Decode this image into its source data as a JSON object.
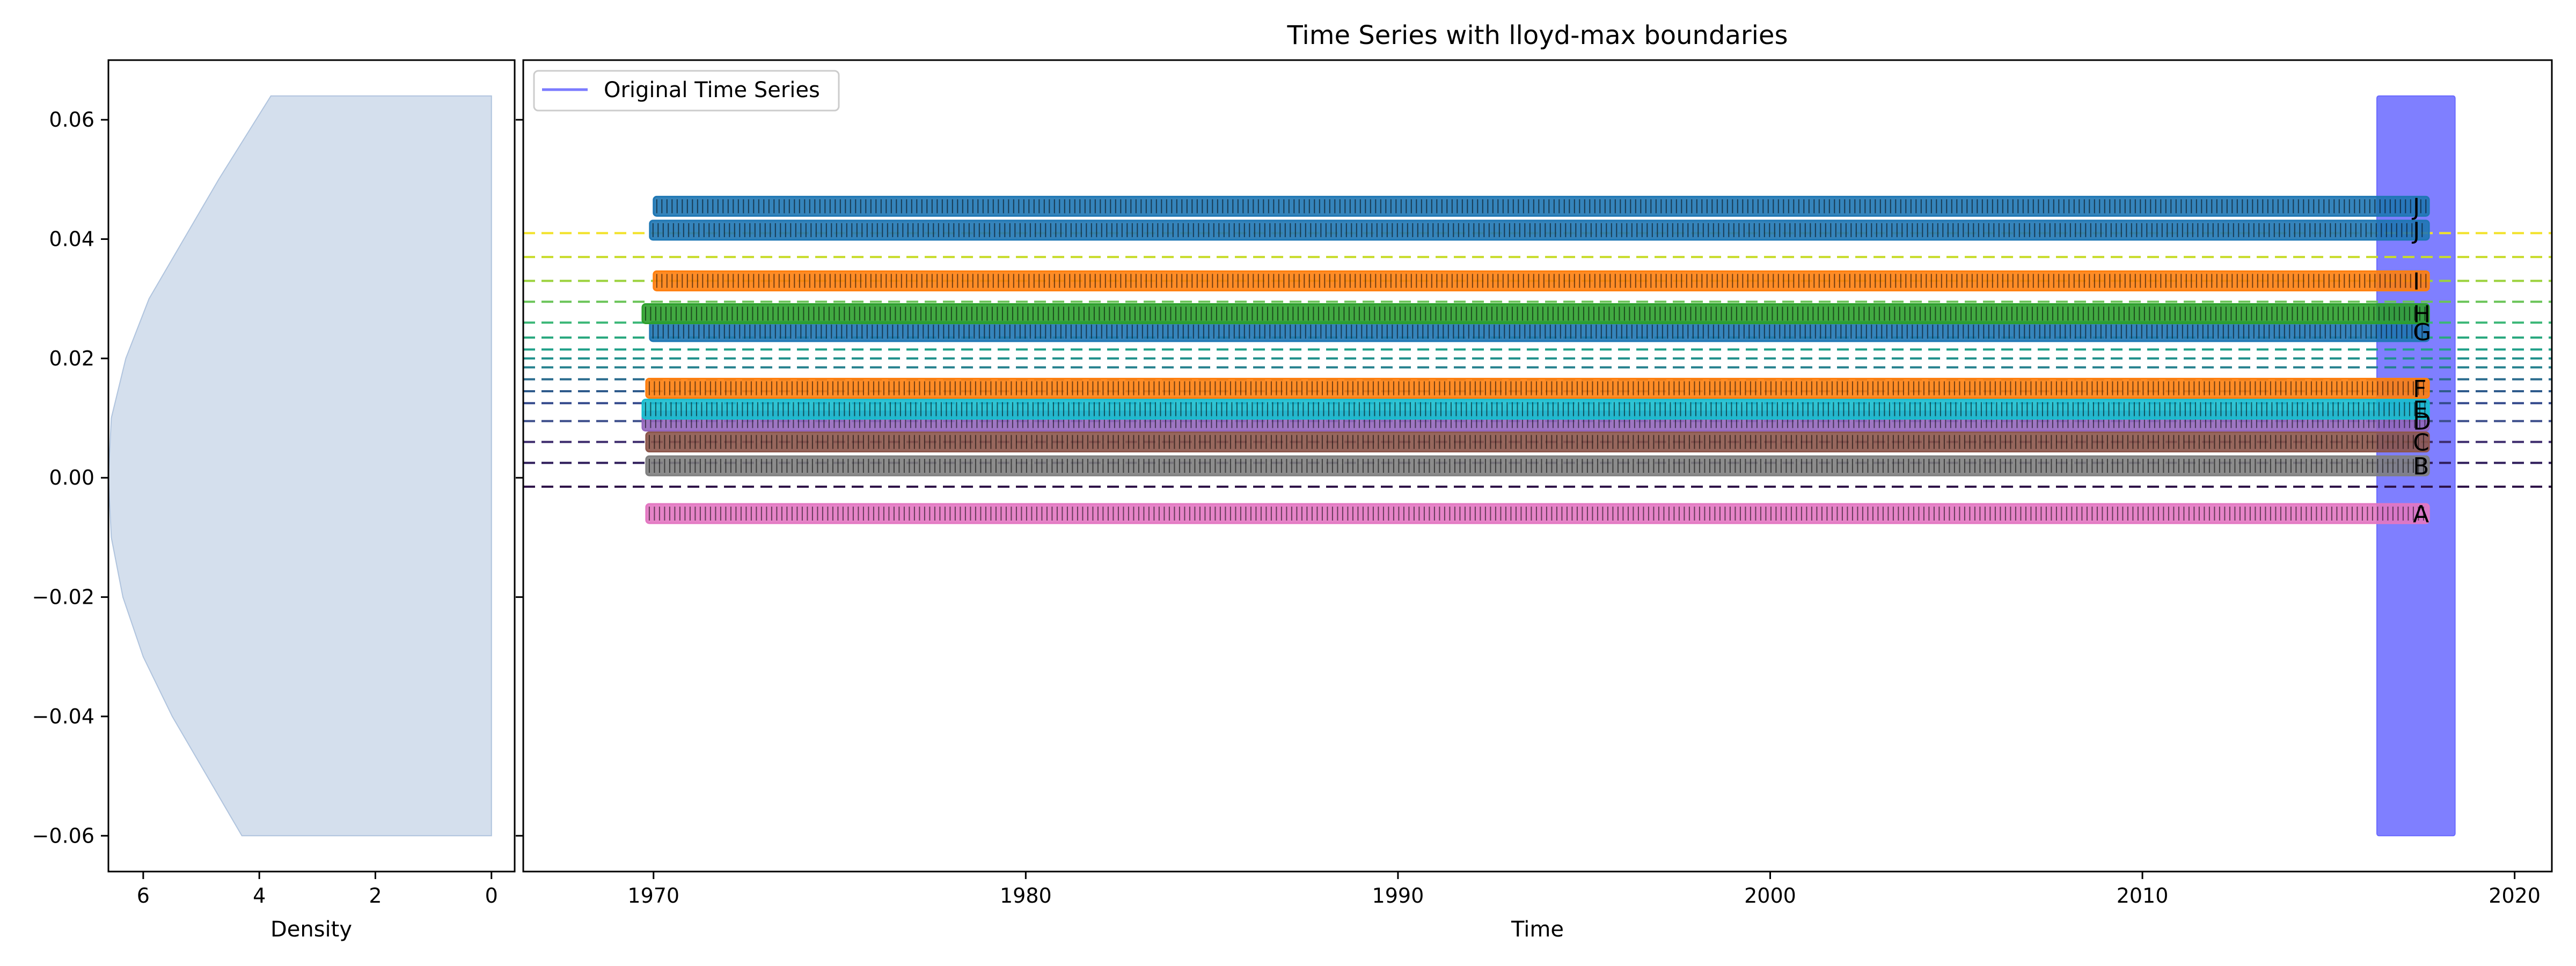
{
  "chart_data": [
    {
      "type": "area",
      "panel": "density",
      "xlabel": "Density",
      "xlim": [
        6.6,
        -0.4
      ],
      "ylim": [
        -0.066,
        0.07
      ],
      "xticks": [
        6,
        4,
        2,
        0
      ],
      "yticks": [
        0.06,
        0.04,
        0.02,
        0.0,
        -0.02,
        -0.04,
        -0.06
      ],
      "ytick_labels": [
        "0.06",
        "0.04",
        "0.02",
        "0.00",
        "−0.02",
        "−0.04",
        "−0.06"
      ],
      "fill_color": "#b0c4de",
      "fill_opacity": 0.55,
      "curve": {
        "y": [
          -0.06,
          -0.05,
          -0.04,
          -0.03,
          -0.02,
          -0.01,
          0.0,
          0.01,
          0.02,
          0.03,
          0.04,
          0.05,
          0.064
        ],
        "density": [
          4.3,
          4.9,
          5.5,
          6.0,
          6.35,
          6.55,
          6.6,
          6.55,
          6.3,
          5.9,
          5.3,
          4.7,
          3.8
        ]
      }
    },
    {
      "type": "line",
      "panel": "time-series",
      "title": "Time Series with lloyd-max boundaries",
      "xlabel": "Time",
      "xlim": [
        1966.5,
        2021.0
      ],
      "ylim": [
        -0.066,
        0.07
      ],
      "xticks": [
        1970,
        1980,
        1990,
        2000,
        2010,
        2020
      ],
      "legend": {
        "position": "top-left",
        "entries": [
          {
            "label": "Original Time Series",
            "color": "#7b7bff"
          }
        ]
      },
      "series_block": {
        "name": "Original Time Series",
        "x_start": 2016.3,
        "x_end": 2018.4,
        "y_min": -0.06,
        "y_max": 0.064,
        "color": "#7f7fff"
      },
      "boundaries": [
        {
          "y": -0.0015,
          "color": "#2d1147"
        },
        {
          "y": 0.0025,
          "color": "#2d1b59"
        },
        {
          "y": 0.006,
          "color": "#3b2a6b"
        },
        {
          "y": 0.0095,
          "color": "#3b4d8a"
        },
        {
          "y": 0.0125,
          "color": "#344a8c"
        },
        {
          "y": 0.0145,
          "color": "#2f5b8c"
        },
        {
          "y": 0.0165,
          "color": "#2a6b8e"
        },
        {
          "y": 0.0185,
          "color": "#24808d"
        },
        {
          "y": 0.02,
          "color": "#1f908b"
        },
        {
          "y": 0.0215,
          "color": "#1fa088"
        },
        {
          "y": 0.0235,
          "color": "#2aa87f"
        },
        {
          "y": 0.026,
          "color": "#3bb777"
        },
        {
          "y": 0.0295,
          "color": "#6ac458"
        },
        {
          "y": 0.033,
          "color": "#9bd23c"
        },
        {
          "y": 0.037,
          "color": "#c8dc2a"
        },
        {
          "y": 0.041,
          "color": "#f2e22a"
        }
      ],
      "bands": [
        {
          "label": "A",
          "y": -0.006,
          "color": "#e377c2",
          "x_start": 1969.8,
          "x_end": 2017.7
        },
        {
          "label": "B",
          "y": 0.002,
          "color": "#7f7f7f",
          "x_start": 1969.8,
          "x_end": 2017.7
        },
        {
          "label": "C",
          "y": 0.006,
          "color": "#8c564b",
          "x_start": 1969.8,
          "x_end": 2017.7
        },
        {
          "label": "D",
          "y": 0.0095,
          "color": "#9467bd",
          "x_start": 1969.7,
          "x_end": 2017.7
        },
        {
          "label": "E",
          "y": 0.0115,
          "color": "#17becf",
          "x_start": 1969.7,
          "x_end": 2017.7
        },
        {
          "label": "F",
          "y": 0.015,
          "color": "#ff7f0e",
          "x_start": 1969.8,
          "x_end": 2017.7
        },
        {
          "label": "G",
          "y": 0.0245,
          "color": "#1f77b4",
          "x_start": 1969.9,
          "x_end": 2017.7
        },
        {
          "label": "H",
          "y": 0.0275,
          "color": "#2ca02c",
          "x_start": 1969.7,
          "x_end": 2017.7
        },
        {
          "label": "I",
          "y": 0.033,
          "color": "#ff7f0e",
          "x_start": 1970.0,
          "x_end": 2017.7
        },
        {
          "label": "J",
          "y": 0.0415,
          "color": "#1f77b4",
          "x_start": 1969.9,
          "x_end": 2017.7
        },
        {
          "label": "J",
          "y": 0.0455,
          "color": "#1f77b4",
          "x_start": 1970.0,
          "x_end": 2017.7
        }
      ]
    }
  ]
}
